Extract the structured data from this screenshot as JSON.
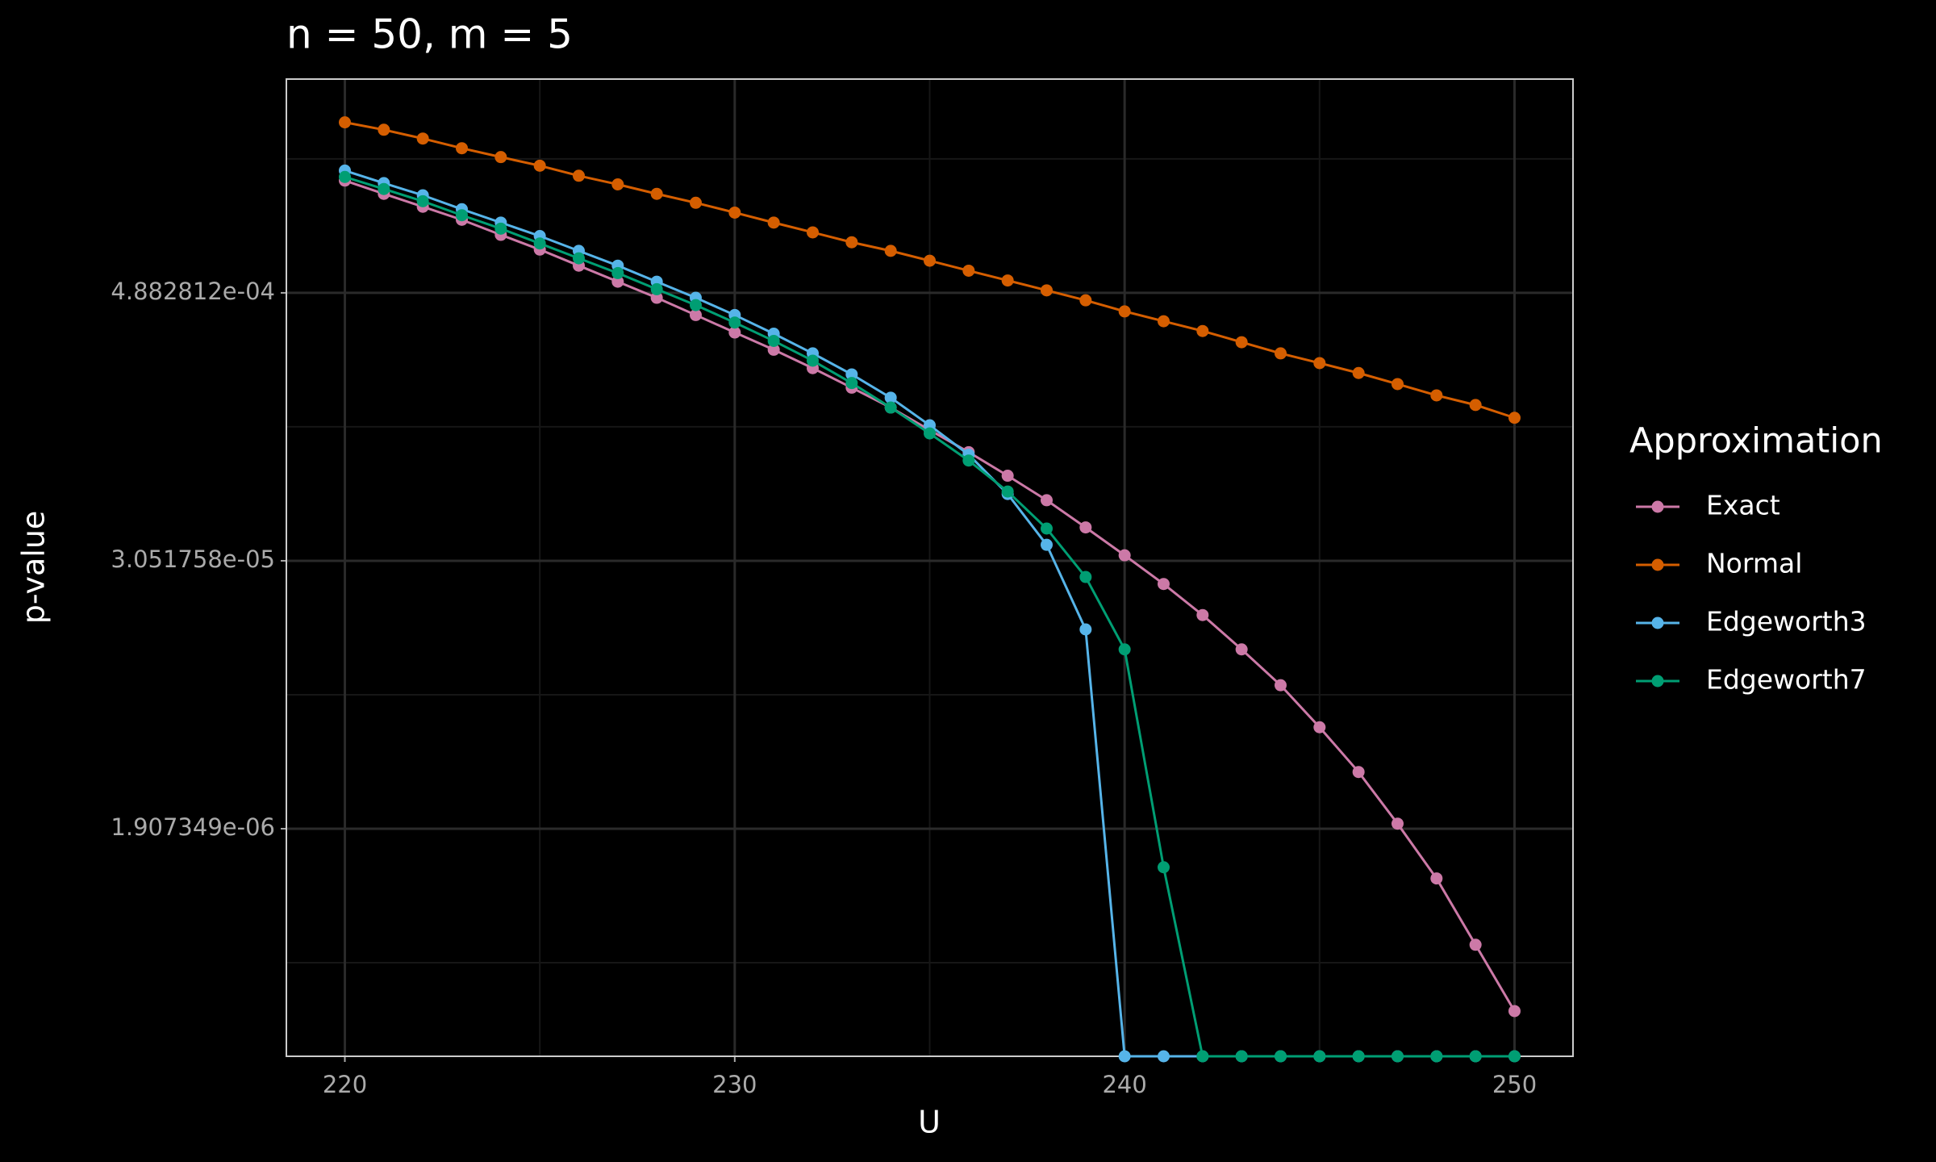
{
  "chart_data": {
    "type": "line",
    "title": "n = 50, m = 5",
    "xlabel": "U",
    "ylabel": "p-value",
    "legend_title": "Approximation",
    "legend": "right",
    "log_y": true,
    "grid": true,
    "x": [
      220,
      221,
      222,
      223,
      224,
      225,
      226,
      227,
      228,
      229,
      230,
      231,
      232,
      233,
      234,
      235,
      236,
      237,
      238,
      239,
      240,
      241,
      242,
      243,
      244,
      245,
      246,
      247,
      248,
      249,
      250
    ],
    "xlim": [
      218.5,
      251.5
    ],
    "xticks": [
      220,
      230,
      240,
      250
    ],
    "ylim": [
      1.81e-07,
      0.00446
    ],
    "yticks": [
      {
        "value": 0.0004882812,
        "label": "4.882812e-04"
      },
      {
        "value": 3.051758e-05,
        "label": "3.051758e-05"
      },
      {
        "value": 1.907349e-06,
        "label": "1.907349e-06"
      }
    ],
    "series": [
      {
        "name": "Exact",
        "color": "#cc79a7",
        "values": [
          0.00156,
          0.00136,
          0.00119,
          0.00104,
          0.00089,
          0.000764,
          0.000647,
          0.000548,
          0.000464,
          0.000388,
          0.000324,
          0.000271,
          0.000224,
          0.000183,
          0.000149,
          0.000118,
          9.39e-05,
          7.36e-05,
          5.71e-05,
          4.31e-05,
          3.23e-05,
          2.4e-05,
          1.74e-05,
          1.22e-05,
          8.42e-06,
          5.45e-06,
          3.43e-06,
          2.01e-06,
          1.14e-06,
          5.74e-07,
          2.89e-07
        ]
      },
      {
        "name": "Normal",
        "color": "#d55e00",
        "values": [
          0.00285,
          0.00264,
          0.00241,
          0.00218,
          0.00199,
          0.00182,
          0.00164,
          0.0015,
          0.00136,
          0.00124,
          0.00112,
          0.00101,
          0.000913,
          0.000824,
          0.000754,
          0.000681,
          0.000614,
          0.000555,
          0.000501,
          0.000452,
          0.000403,
          0.000364,
          0.000329,
          0.000293,
          0.000261,
          0.000236,
          0.000213,
          0.00019,
          0.000169,
          0.000153,
          0.000134
        ]
      },
      {
        "name": "Edgeworth3",
        "color": "#56b4e9",
        "values": [
          0.00173,
          0.00152,
          0.00134,
          0.00116,
          0.00101,
          0.000879,
          0.000754,
          0.000647,
          0.000548,
          0.000464,
          0.000388,
          0.00032,
          0.000261,
          0.00021,
          0.000165,
          0.000124,
          9.15e-05,
          6.09e-05,
          3.6e-05,
          1.5e-05,
          0,
          0,
          0,
          0,
          0,
          0,
          0,
          0,
          0,
          0,
          0
        ]
      },
      {
        "name": "Edgeworth7",
        "color": "#009e73",
        "values": [
          0.00162,
          0.00143,
          0.00126,
          0.00109,
          0.000949,
          0.000814,
          0.000698,
          0.000599,
          0.000507,
          0.00043,
          0.000359,
          0.000297,
          0.000242,
          0.000192,
          0.000149,
          0.000114,
          8.61e-05,
          6.25e-05,
          4.26e-05,
          2.58e-05,
          1.22e-05,
          1.28e-06,
          0,
          0,
          0,
          0,
          0,
          0,
          0,
          0,
          0
        ]
      }
    ]
  }
}
